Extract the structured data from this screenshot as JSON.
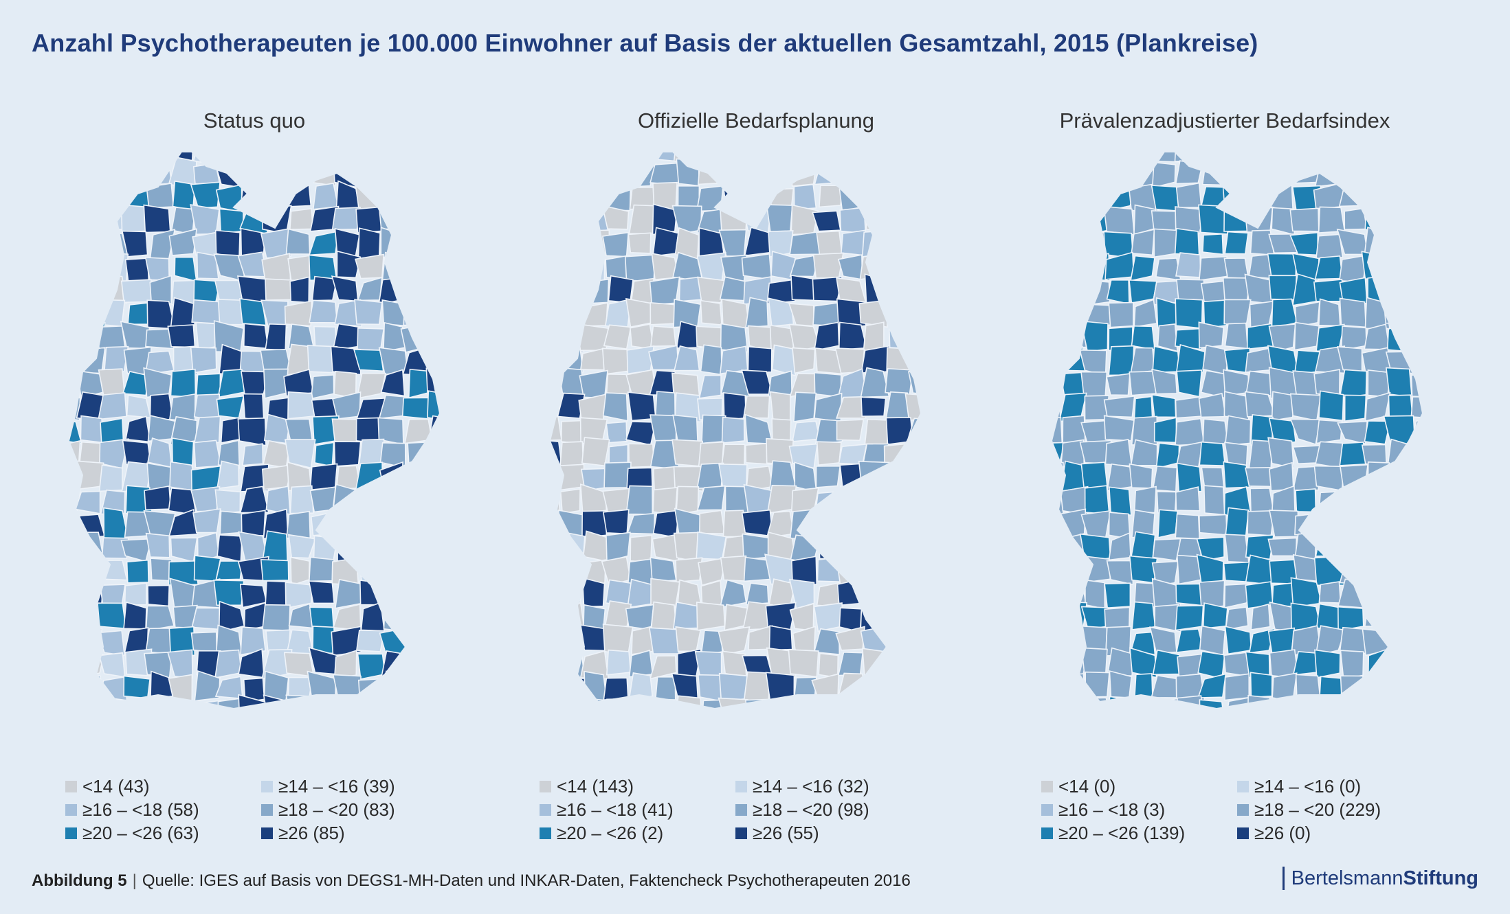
{
  "title": "Anzahl Psychotherapeuten je 100.000 Einwohner auf Basis der aktuellen Gesamtzahl, 2015 (Plankreise)",
  "colors": {
    "c1": "#cdd1d6",
    "c2": "#c4d6e9",
    "c3": "#a5bfdb",
    "c4": "#86a8c9",
    "c5": "#1e7fb1",
    "c6": "#1b3f7d",
    "border": "#eef3f9"
  },
  "maps": [
    {
      "title": "Status quo",
      "legend": [
        {
          "label": "<14 (43)",
          "color_key": "c1"
        },
        {
          "label": "≥14 – <16 (39)",
          "color_key": "c2"
        },
        {
          "label": "≥16 – <18 (58)",
          "color_key": "c3"
        },
        {
          "label": "≥18 – <20 (83)",
          "color_key": "c4"
        },
        {
          "label": "≥20 – <26 (63)",
          "color_key": "c5"
        },
        {
          "label": "≥26 (85)",
          "color_key": "c6"
        }
      ]
    },
    {
      "title": "Offizielle Bedarfsplanung",
      "legend": [
        {
          "label": "<14 (143)",
          "color_key": "c1"
        },
        {
          "label": "≥14 – <16 (32)",
          "color_key": "c2"
        },
        {
          "label": "≥16 – <18 (41)",
          "color_key": "c3"
        },
        {
          "label": "≥18 – <20 (98)",
          "color_key": "c4"
        },
        {
          "label": "≥20 – <26 (2)",
          "color_key": "c5"
        },
        {
          "label": "≥26 (55)",
          "color_key": "c6"
        }
      ]
    },
    {
      "title": "Prävalenzadjustierter Bedarfsindex",
      "legend": [
        {
          "label": "<14 (0)",
          "color_key": "c1"
        },
        {
          "label": "≥14 – <16 (0)",
          "color_key": "c2"
        },
        {
          "label": "≥16 – <18 (3)",
          "color_key": "c3"
        },
        {
          "label": "≥18 – <20 (229)",
          "color_key": "c4"
        },
        {
          "label": "≥20 – <26 (139)",
          "color_key": "c5"
        },
        {
          "label": "≥26 (0)",
          "color_key": "c6"
        }
      ]
    }
  ],
  "footer": {
    "figure": "Abbildung 5",
    "separator": "|",
    "source": "Quelle: IGES auf Basis von DEGS1-MH-Daten und INKAR-Daten, Faktencheck Psychotherapeuten 2016"
  },
  "brand": {
    "name_regular": "Bertelsmann",
    "name_bold": "Stiftung"
  }
}
